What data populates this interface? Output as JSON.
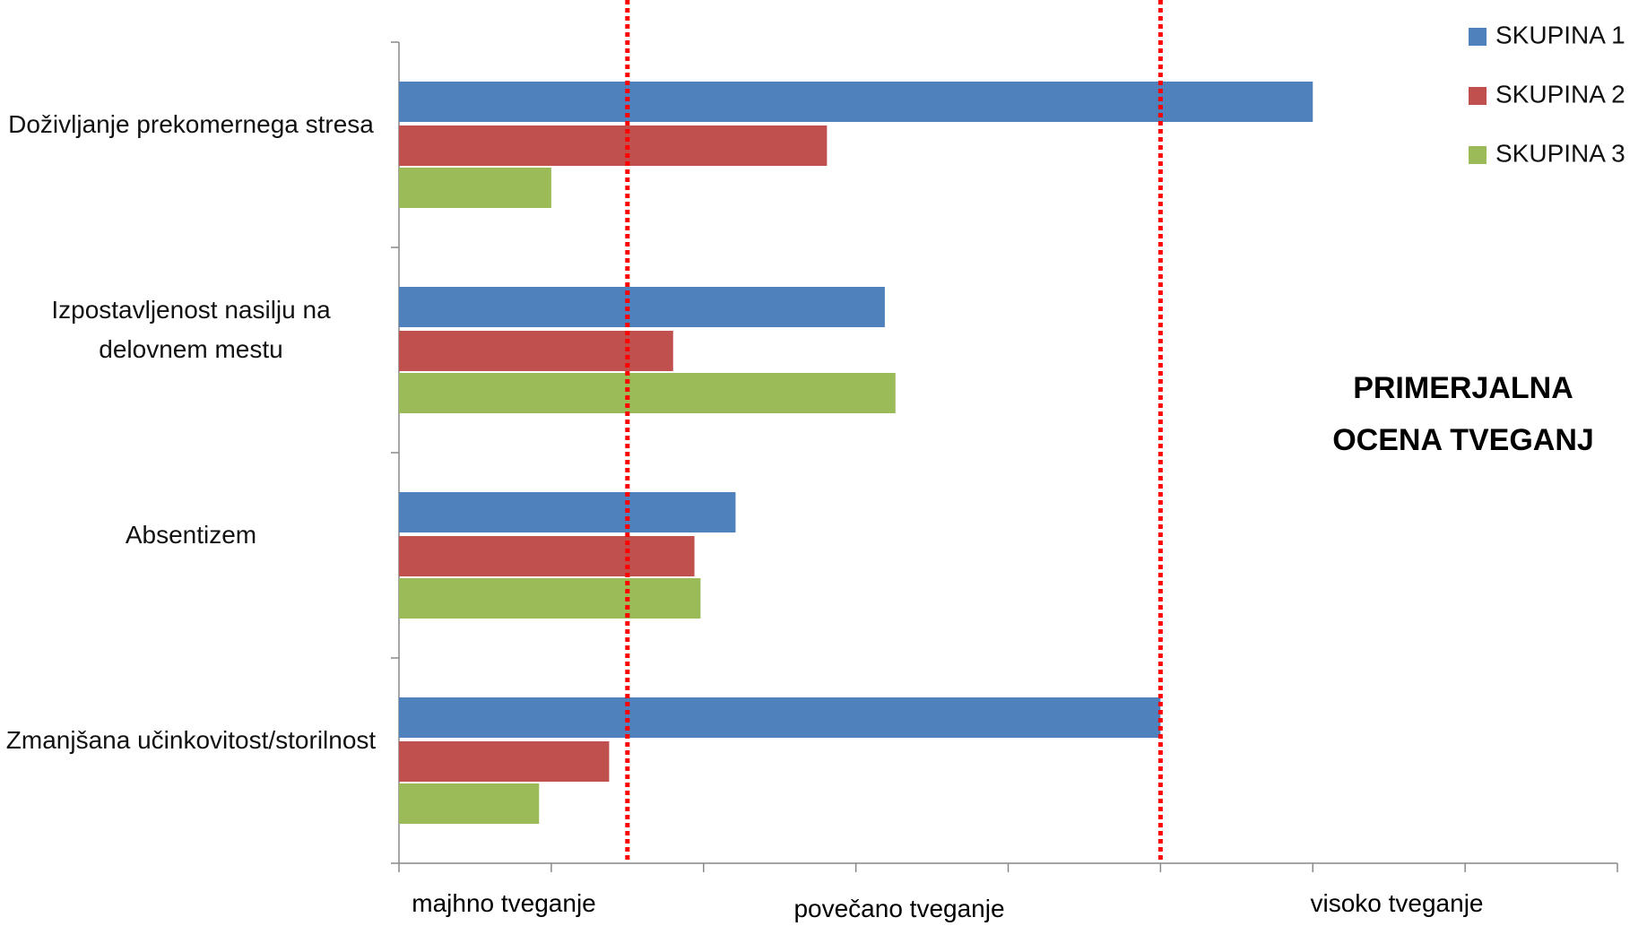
{
  "chart_data": {
    "type": "barh",
    "categories": [
      "Doživljanje prekomernega stresa",
      "Izpostavljenost nasilju na delovnem mestu",
      "Absentizem",
      "Zmanjšana učinkovitost/storilnost"
    ],
    "series": [
      {
        "name": "SKUPINA 1",
        "color": "#4f81bd",
        "values": [
          6.0,
          3.19,
          2.21,
          5.0
        ]
      },
      {
        "name": "SKUPINA 2",
        "color": "#c0504d",
        "values": [
          2.81,
          1.8,
          1.94,
          1.38
        ]
      },
      {
        "name": "SKUPINA 3",
        "color": "#9bbb59",
        "values": [
          1.0,
          3.26,
          1.98,
          0.92
        ]
      }
    ],
    "xlim": [
      0,
      8
    ],
    "xticks": [
      0,
      1,
      2,
      3,
      4,
      5,
      6,
      7,
      8
    ],
    "reference_lines": [
      1.5,
      5
    ],
    "reference_color": "#ff0000",
    "x_labels": [
      "majhno tveganje",
      "povečano tveganje",
      "visoko tveganje"
    ],
    "annotation": "PRIMERJALNA OCENA TVEGANJ",
    "legend": "top-right"
  }
}
